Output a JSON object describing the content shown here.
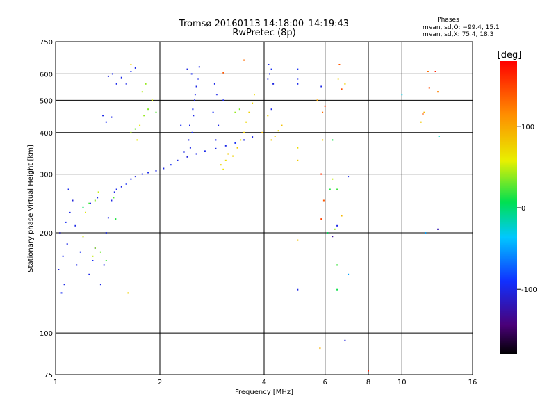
{
  "chart_data": {
    "type": "scatter",
    "title": "Tromsø 20160113 14:18:00–14:19:43",
    "subtitle": "RwPretec (8p)",
    "stats": {
      "heading": "Phases",
      "line1": "mean, sd,O: −99.4, 15.1",
      "line2": "mean, sd,X:  75.4, 18.3"
    },
    "xlabel": "Frequency [MHz]",
    "ylabel": "Stationary phase Virtual Height [km]",
    "x_scale": "log",
    "y_scale": "log",
    "xlim": [
      1,
      16
    ],
    "ylim": [
      75,
      750
    ],
    "x_ticks": [
      1,
      2,
      4,
      6,
      8,
      10,
      16
    ],
    "x_tick_labels": [
      "1",
      "2",
      "4",
      "6",
      "8",
      "10",
      "16"
    ],
    "y_ticks": [
      75,
      100,
      200,
      300,
      400,
      500,
      600,
      750
    ],
    "y_tick_labels": [
      "75",
      "100",
      "200",
      "300",
      "400",
      "500",
      "600",
      "750"
    ],
    "grid_x": [
      2,
      4,
      6,
      8,
      10
    ],
    "grid_y": [
      100,
      200,
      300,
      400,
      500,
      600
    ],
    "grid": true,
    "colorbar": {
      "label": "[deg]",
      "range": [
        -180,
        180
      ],
      "ticks": [
        100,
        0,
        -100
      ],
      "tick_labels": [
        "100",
        "0",
        "-100"
      ]
    },
    "series": [
      {
        "points": [
          [
            1.04,
            132,
            -95
          ],
          [
            1.06,
            140,
            -100
          ],
          [
            1.02,
            155,
            -105
          ],
          [
            1.05,
            170,
            -98
          ],
          [
            1.08,
            185,
            -100
          ],
          [
            1.03,
            200,
            -110
          ],
          [
            1.07,
            215,
            -95
          ],
          [
            1.1,
            230,
            -100
          ],
          [
            1.12,
            250,
            -105
          ],
          [
            1.09,
            270,
            -98
          ],
          [
            1.15,
            160,
            -100
          ],
          [
            1.18,
            175,
            -95
          ],
          [
            1.2,
            195,
            -102
          ],
          [
            1.14,
            210,
            -100
          ],
          [
            1.22,
            230,
            -97
          ],
          [
            1.25,
            150,
            -100
          ],
          [
            1.28,
            165,
            -95
          ],
          [
            1.3,
            180,
            -105
          ],
          [
            1.26,
            245,
            -100
          ],
          [
            1.32,
            255,
            -98
          ],
          [
            1.35,
            140,
            -100
          ],
          [
            1.38,
            160,
            -100
          ],
          [
            1.4,
            200,
            -95
          ],
          [
            1.42,
            222,
            -100
          ],
          [
            1.45,
            250,
            -102
          ],
          [
            1.48,
            265,
            -100
          ],
          [
            1.5,
            270,
            -98
          ],
          [
            1.55,
            275,
            -100
          ],
          [
            1.6,
            280,
            -95
          ],
          [
            1.65,
            290,
            -100
          ],
          [
            1.7,
            295,
            -105
          ],
          [
            1.78,
            300,
            -100
          ],
          [
            1.85,
            303,
            -98
          ],
          [
            1.95,
            307,
            -100
          ],
          [
            2.05,
            312,
            -100
          ],
          [
            2.15,
            320,
            -95
          ],
          [
            2.25,
            330,
            -100
          ],
          [
            2.4,
            338,
            -105
          ],
          [
            2.55,
            345,
            -100
          ],
          [
            2.7,
            352,
            -98
          ],
          [
            2.9,
            358,
            -100
          ],
          [
            3.1,
            365,
            -100
          ],
          [
            3.3,
            372,
            -95
          ],
          [
            3.5,
            380,
            -100
          ],
          [
            3.7,
            388,
            -102
          ],
          [
            1.37,
            450,
            -100
          ],
          [
            1.4,
            430,
            -95
          ],
          [
            1.45,
            445,
            -100
          ],
          [
            1.42,
            590,
            -105
          ],
          [
            1.46,
            600,
            -100
          ],
          [
            1.5,
            560,
            -98
          ],
          [
            1.55,
            585,
            -100
          ],
          [
            1.65,
            610,
            -95
          ],
          [
            1.7,
            625,
            -100
          ],
          [
            1.6,
            560,
            -100
          ],
          [
            2.45,
            360,
            -100
          ],
          [
            2.48,
            400,
            -95
          ],
          [
            2.5,
            450,
            -100
          ],
          [
            2.52,
            500,
            -105
          ],
          [
            2.55,
            550,
            -100
          ],
          [
            2.47,
            600,
            -98
          ],
          [
            2.42,
            380,
            -100
          ],
          [
            2.44,
            420,
            -100
          ],
          [
            2.49,
            470,
            -95
          ],
          [
            2.53,
            520,
            -100
          ],
          [
            2.58,
            580,
            -100
          ],
          [
            2.6,
            630,
            -98
          ],
          [
            2.4,
            620,
            -102
          ],
          [
            2.35,
            350,
            -100
          ],
          [
            2.3,
            420,
            -95
          ],
          [
            2.9,
            380,
            -100
          ],
          [
            2.95,
            420,
            -100
          ],
          [
            2.85,
            460,
            -95
          ],
          [
            2.92,
            520,
            -100
          ],
          [
            2.88,
            560,
            -100
          ],
          [
            3.05,
            500,
            -98
          ],
          [
            4.1,
            580,
            -100
          ],
          [
            4.15,
            600,
            -100
          ],
          [
            4.2,
            620,
            -95
          ],
          [
            4.12,
            640,
            -100
          ],
          [
            4.25,
            560,
            -102
          ],
          [
            5.0,
            620,
            -95
          ],
          [
            5.0,
            580,
            -100
          ],
          [
            5.0,
            560,
            -98
          ],
          [
            5.0,
            135,
            -100
          ],
          [
            6.5,
            210,
            -100
          ],
          [
            6.85,
            95,
            -105
          ],
          [
            5.85,
            550,
            -100
          ],
          [
            7.0,
            295,
            -100
          ],
          [
            4.2,
            470,
            -100
          ]
        ]
      },
      {
        "points": [
          [
            1.2,
            238,
            5
          ],
          [
            1.25,
            245,
            20
          ],
          [
            1.3,
            250,
            35
          ],
          [
            1.33,
            265,
            50
          ],
          [
            1.22,
            230,
            60
          ],
          [
            1.3,
            180,
            40
          ],
          [
            1.35,
            175,
            30
          ],
          [
            1.4,
            165,
            20
          ],
          [
            1.28,
            170,
            50
          ],
          [
            1.47,
            255,
            25
          ],
          [
            1.49,
            220,
            15
          ],
          [
            1.2,
            195,
            55
          ],
          [
            1.65,
            400,
            45
          ],
          [
            1.7,
            410,
            30
          ],
          [
            1.75,
            420,
            60
          ],
          [
            1.8,
            450,
            40
          ],
          [
            1.85,
            470,
            35
          ],
          [
            1.9,
            500,
            55
          ],
          [
            1.78,
            530,
            45
          ],
          [
            1.82,
            560,
            40
          ],
          [
            1.95,
            460,
            25
          ],
          [
            1.72,
            380,
            60
          ],
          [
            3.0,
            320,
            75
          ],
          [
            3.1,
            330,
            70
          ],
          [
            3.15,
            345,
            80
          ],
          [
            3.05,
            310,
            65
          ],
          [
            3.25,
            340,
            75
          ],
          [
            3.35,
            360,
            80
          ],
          [
            3.42,
            380,
            70
          ],
          [
            3.5,
            400,
            78
          ],
          [
            3.55,
            430,
            72
          ],
          [
            3.62,
            460,
            76
          ],
          [
            3.7,
            490,
            74
          ],
          [
            3.75,
            520,
            70
          ],
          [
            3.3,
            460,
            40
          ],
          [
            3.4,
            470,
            35
          ],
          [
            4.2,
            380,
            80
          ],
          [
            4.3,
            390,
            75
          ],
          [
            4.4,
            405,
            70
          ],
          [
            4.5,
            420,
            85
          ],
          [
            4.1,
            450,
            75
          ],
          [
            3.95,
            400,
            90
          ],
          [
            5.0,
            330,
            80
          ],
          [
            5.0,
            360,
            70
          ],
          [
            5.7,
            500,
            100
          ],
          [
            5.9,
            380,
            80
          ],
          [
            6.3,
            290,
            50
          ],
          [
            6.5,
            160,
            20
          ],
          [
            6.5,
            135,
            10
          ],
          [
            6.85,
            560,
            75
          ],
          [
            6.3,
            380,
            10
          ],
          [
            6.2,
            270,
            15
          ],
          [
            6.1,
            200,
            5
          ],
          [
            5.0,
            190,
            85
          ],
          [
            5.8,
            90,
            95
          ],
          [
            6.4,
            205,
            40
          ],
          [
            6.5,
            270,
            20
          ],
          [
            6.55,
            580,
            75
          ],
          [
            6.7,
            225,
            90
          ],
          [
            1.65,
            640,
            75
          ],
          [
            1.62,
            132,
            75
          ],
          [
            3.5,
            660,
            130
          ],
          [
            3.05,
            605,
            140
          ]
        ]
      },
      {
        "points": [
          [
            5.9,
            460,
            130
          ],
          [
            6.0,
            480,
            150
          ],
          [
            5.85,
            300,
            160
          ],
          [
            5.95,
            250,
            140
          ],
          [
            5.85,
            220,
            150
          ],
          [
            6.6,
            640,
            140
          ],
          [
            6.7,
            540,
            145
          ],
          [
            11.5,
            455,
            140
          ],
          [
            11.9,
            610,
            130
          ],
          [
            12.0,
            545,
            145
          ],
          [
            12.5,
            610,
            165
          ],
          [
            12.7,
            530,
            120
          ],
          [
            11.6,
            460,
            90
          ],
          [
            11.35,
            430,
            80
          ],
          [
            11.7,
            200,
            -50
          ],
          [
            8.0,
            77,
            165
          ],
          [
            6.3,
            195,
            -130
          ],
          [
            7.0,
            150,
            -50
          ],
          [
            10.0,
            520,
            -30
          ],
          [
            12.8,
            390,
            -20
          ],
          [
            12.7,
            205,
            -120
          ]
        ]
      }
    ]
  }
}
